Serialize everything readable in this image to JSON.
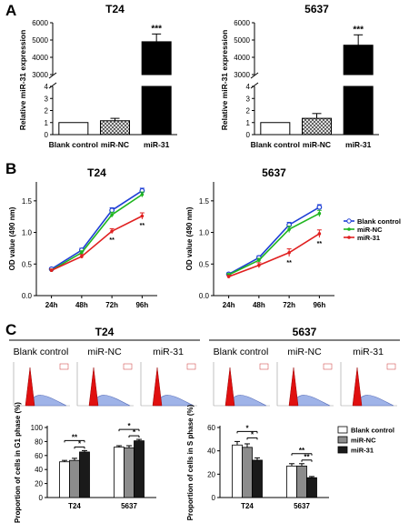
{
  "panel_labels": [
    "A",
    "B",
    "C"
  ],
  "colors": {
    "blank": "#1f3fd6",
    "nc": "#1fb51f",
    "mir31": "#e02020"
  },
  "chart_data": [
    {
      "id": "A1",
      "type": "bar",
      "title": "T24",
      "ylabel": "Relative miR-31 expression",
      "categories": [
        "Blank control",
        "miR-NC",
        "miR-31"
      ],
      "values": [
        1,
        1.15,
        4900
      ],
      "errors": [
        0,
        0.2,
        450
      ],
      "significance": [
        "",
        "",
        "***"
      ],
      "axis_break": true,
      "yticks_low": [
        "0",
        "1",
        "2",
        "3",
        "4"
      ],
      "yticks_high": [
        "3000",
        "4000",
        "5000",
        "6000"
      ]
    },
    {
      "id": "A2",
      "type": "bar",
      "title": "5637",
      "ylabel": "Relative miR-31 expression",
      "categories": [
        "Blank control",
        "miR-NC",
        "miR-31"
      ],
      "values": [
        1,
        1.35,
        4700
      ],
      "errors": [
        0,
        0.4,
        600
      ],
      "significance": [
        "",
        "",
        "***"
      ],
      "axis_break": true,
      "yticks_low": [
        "0",
        "1",
        "2",
        "3",
        "4"
      ],
      "yticks_high": [
        "3000",
        "4000",
        "5000",
        "6000"
      ]
    },
    {
      "id": "B1",
      "type": "line",
      "title": "T24",
      "ylabel": "OD value (490 nm)",
      "categories": [
        "24h",
        "48h",
        "72h",
        "96h"
      ],
      "ylim": [
        0,
        1.8
      ],
      "yticks": [
        "0.0",
        "0.5",
        "1.0",
        "1.5"
      ],
      "series": [
        {
          "name": "Blank control",
          "values": [
            0.42,
            0.72,
            1.35,
            1.66
          ],
          "errors": [
            0.02,
            0.03,
            0.04,
            0.04
          ]
        },
        {
          "name": "miR-NC",
          "values": [
            0.4,
            0.68,
            1.28,
            1.6
          ],
          "errors": [
            0.02,
            0.03,
            0.04,
            0.04
          ]
        },
        {
          "name": "miR-31",
          "values": [
            0.4,
            0.62,
            1.02,
            1.26
          ],
          "errors": [
            0.02,
            0.03,
            0.04,
            0.05
          ]
        }
      ],
      "significance": [
        "",
        "",
        "**",
        "**"
      ]
    },
    {
      "id": "B2",
      "type": "line",
      "title": "5637",
      "ylabel": "OD value (490 nm)",
      "categories": [
        "24h",
        "48h",
        "72h",
        "96h"
      ],
      "ylim": [
        0,
        1.6
      ],
      "yticks": [
        "0.0",
        "0.5",
        "1.0",
        "1.5"
      ],
      "series": [
        {
          "name": "Blank control",
          "values": [
            0.34,
            0.6,
            1.12,
            1.4
          ],
          "errors": [
            0.02,
            0.03,
            0.04,
            0.04
          ]
        },
        {
          "name": "miR-NC",
          "values": [
            0.33,
            0.56,
            1.05,
            1.3
          ],
          "errors": [
            0.02,
            0.03,
            0.05,
            0.05
          ]
        },
        {
          "name": "miR-31",
          "values": [
            0.3,
            0.48,
            0.68,
            0.98
          ],
          "errors": [
            0.02,
            0.04,
            0.06,
            0.06
          ]
        }
      ],
      "significance": [
        "",
        "",
        "**",
        "**"
      ],
      "legend_position": "right"
    },
    {
      "id": "C1",
      "type": "bar",
      "ylabel": "Proportion of cells in G1 phase (%)",
      "categories": [
        "T24",
        "5637"
      ],
      "ylim": [
        0,
        100
      ],
      "yticks": [
        "0",
        "20",
        "40",
        "60",
        "80",
        "100"
      ],
      "series": [
        {
          "name": "Blank control",
          "values": [
            51,
            72
          ],
          "errors": [
            2,
            2
          ]
        },
        {
          "name": "miR-NC",
          "values": [
            53,
            71
          ],
          "errors": [
            3,
            3
          ]
        },
        {
          "name": "miR-31",
          "values": [
            65,
            81
          ],
          "errors": [
            2,
            2
          ]
        }
      ],
      "brackets": [
        {
          "group": 0,
          "from": 0,
          "to": 2,
          "level": 1,
          "label": "**"
        },
        {
          "group": 0,
          "from": 1,
          "to": 2,
          "level": 0,
          "label": "*"
        },
        {
          "group": 1,
          "from": 0,
          "to": 2,
          "level": 1,
          "label": "*"
        },
        {
          "group": 1,
          "from": 1,
          "to": 2,
          "level": 0,
          "label": "*"
        }
      ]
    },
    {
      "id": "C2",
      "type": "bar",
      "ylabel": "Proportion of cells in S phase (%)",
      "categories": [
        "T24",
        "5637"
      ],
      "ylim": [
        0,
        60
      ],
      "yticks": [
        "0",
        "20",
        "40",
        "60"
      ],
      "series": [
        {
          "name": "Blank control",
          "values": [
            45,
            27
          ],
          "errors": [
            3,
            2
          ]
        },
        {
          "name": "miR-NC",
          "values": [
            43,
            27
          ],
          "errors": [
            3,
            2
          ]
        },
        {
          "name": "miR-31",
          "values": [
            32,
            17
          ],
          "errors": [
            2,
            1
          ]
        }
      ],
      "brackets": [
        {
          "group": 0,
          "from": 0,
          "to": 2,
          "level": 1,
          "label": "*"
        },
        {
          "group": 0,
          "from": 1,
          "to": 2,
          "level": 0,
          "label": "*"
        },
        {
          "group": 1,
          "from": 0,
          "to": 2,
          "level": 1,
          "label": "**"
        },
        {
          "group": 1,
          "from": 1,
          "to": 2,
          "level": 0,
          "label": "**"
        }
      ],
      "legend_position": "right"
    }
  ],
  "flow": {
    "cell_lines": [
      "T24",
      "5637"
    ],
    "groups": [
      "Blank control",
      "miR-NC",
      "miR-31"
    ]
  }
}
